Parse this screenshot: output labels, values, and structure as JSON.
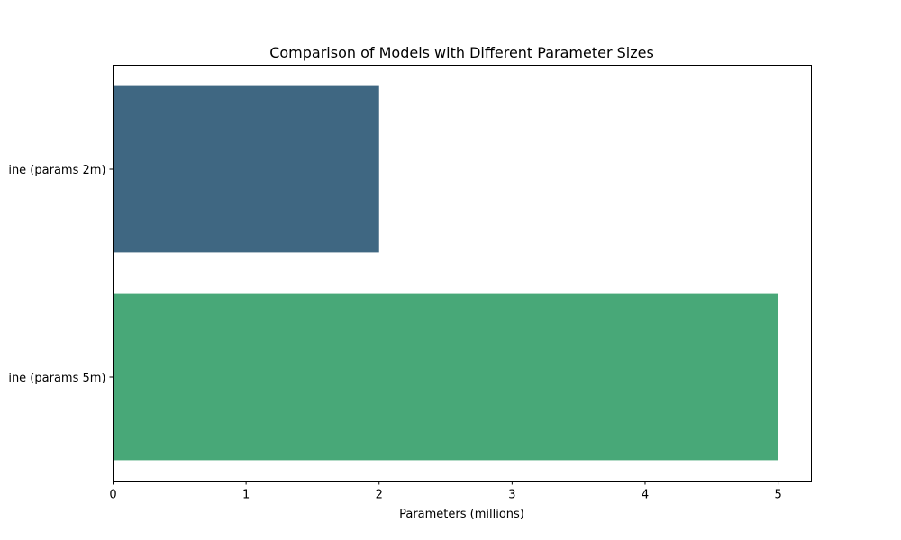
{
  "chart_data": {
    "type": "bar",
    "orientation": "horizontal",
    "title": "Comparison of Models with Different Parameter Sizes",
    "xlabel": "Parameters (millions)",
    "ylabel": "",
    "categories": [
      "ine (params 2m)",
      "ine (params 5m)"
    ],
    "values": [
      2,
      5
    ],
    "colors": [
      "#3f6782",
      "#48a878"
    ],
    "xlim": [
      0,
      5.25
    ],
    "xticks": [
      0,
      1,
      2,
      3,
      4,
      5
    ],
    "grid": false,
    "legend": "none"
  }
}
